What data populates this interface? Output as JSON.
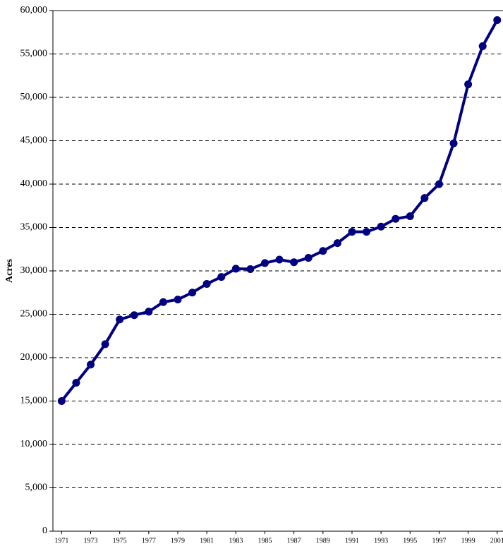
{
  "chart_data": {
    "type": "line",
    "y_label": "Acres",
    "x": [
      1971,
      1972,
      1973,
      1974,
      1975,
      1976,
      1977,
      1978,
      1979,
      1980,
      1981,
      1982,
      1983,
      1984,
      1985,
      1986,
      1987,
      1988,
      1989,
      1990,
      1991,
      1992,
      1993,
      1994,
      1995,
      1996,
      1997,
      1998,
      1999,
      2000,
      2001
    ],
    "series": [
      {
        "name": "Acres",
        "color": "#000080",
        "values": [
          15000,
          17100,
          19200,
          21550,
          24400,
          24900,
          25300,
          26400,
          26700,
          27500,
          28500,
          29300,
          30250,
          30200,
          30900,
          31300,
          31000,
          31500,
          32300,
          33200,
          34500,
          34500,
          35100,
          36000,
          36300,
          38400,
          40000,
          44700,
          51500,
          55900,
          58900
        ]
      }
    ],
    "xlim": [
      1970.4,
      2001.4
    ],
    "xticks": [
      1971,
      1973,
      1975,
      1977,
      1979,
      1981,
      1983,
      1985,
      1987,
      1989,
      1991,
      1993,
      1995,
      1997,
      1999,
      2001
    ],
    "ylim": [
      0,
      60000
    ],
    "yticks": [
      0,
      {
        "value": 5000,
        "label": "5,000"
      },
      {
        "value": 10000,
        "label": "10,000"
      },
      {
        "value": 15000,
        "label": "15,000"
      },
      {
        "value": 20000,
        "label": "20,000"
      },
      {
        "value": 25000,
        "label": "25,000"
      },
      {
        "value": 30000,
        "label": "30,000"
      },
      {
        "value": 35000,
        "label": "35,000"
      },
      {
        "value": 40000,
        "label": "40,000"
      },
      {
        "value": 45000,
        "label": "45,000"
      },
      {
        "value": 50000,
        "label": "50,000"
      },
      {
        "value": 55000,
        "label": "55,000"
      },
      {
        "value": 60000,
        "label": "60,000"
      }
    ],
    "grid": true
  }
}
